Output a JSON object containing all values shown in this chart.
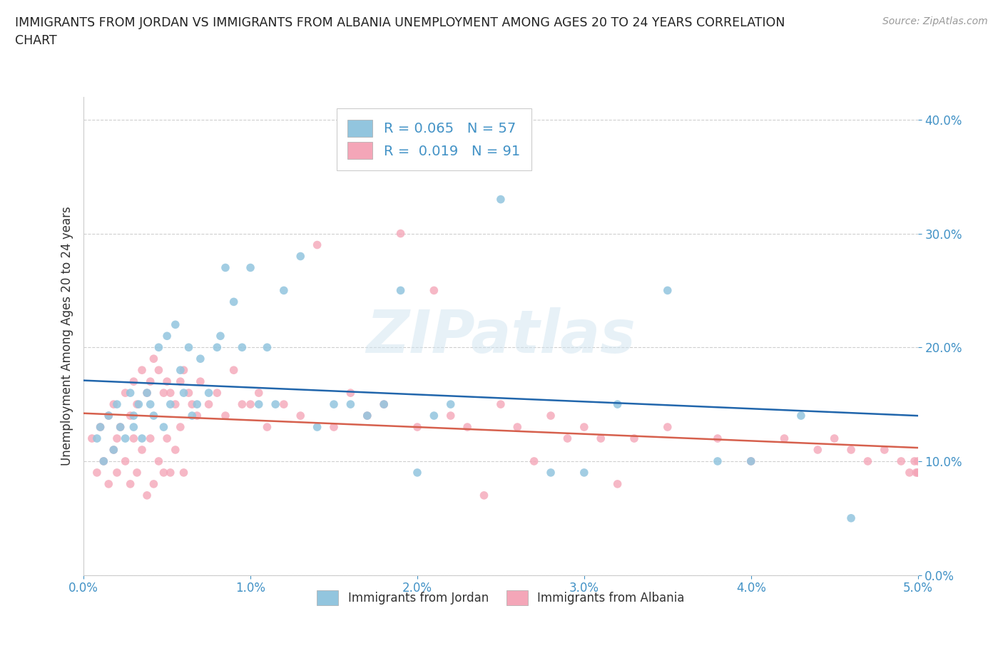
{
  "title": "IMMIGRANTS FROM JORDAN VS IMMIGRANTS FROM ALBANIA UNEMPLOYMENT AMONG AGES 20 TO 24 YEARS CORRELATION\nCHART",
  "source": "Source: ZipAtlas.com",
  "xlabel": "",
  "ylabel": "Unemployment Among Ages 20 to 24 years",
  "legend_label_jordan": "Immigrants from Jordan",
  "legend_label_albania": "Immigrants from Albania",
  "R_jordan": 0.065,
  "N_jordan": 57,
  "R_albania": 0.019,
  "N_albania": 91,
  "color_jordan": "#92c5de",
  "color_albania": "#f4a6b8",
  "trendline_jordan": "#2166ac",
  "trendline_albania": "#d6604d",
  "xlim": [
    0.0,
    0.05
  ],
  "ylim": [
    0.0,
    0.42
  ],
  "xticks": [
    0.0,
    0.01,
    0.02,
    0.03,
    0.04,
    0.05
  ],
  "yticks": [
    0.0,
    0.1,
    0.2,
    0.3,
    0.4
  ],
  "watermark": "ZIPatlas",
  "jordan_x": [
    0.0008,
    0.001,
    0.0012,
    0.0015,
    0.0018,
    0.002,
    0.0022,
    0.0025,
    0.0028,
    0.003,
    0.003,
    0.0033,
    0.0035,
    0.0038,
    0.004,
    0.0042,
    0.0045,
    0.0048,
    0.005,
    0.0052,
    0.0055,
    0.0058,
    0.006,
    0.0063,
    0.0065,
    0.0068,
    0.007,
    0.0075,
    0.008,
    0.0082,
    0.0085,
    0.009,
    0.0095,
    0.01,
    0.0105,
    0.011,
    0.0115,
    0.012,
    0.013,
    0.014,
    0.015,
    0.016,
    0.017,
    0.018,
    0.019,
    0.02,
    0.021,
    0.022,
    0.025,
    0.028,
    0.03,
    0.032,
    0.035,
    0.038,
    0.04,
    0.043,
    0.046
  ],
  "jordan_y": [
    0.12,
    0.13,
    0.1,
    0.14,
    0.11,
    0.15,
    0.13,
    0.12,
    0.16,
    0.14,
    0.13,
    0.15,
    0.12,
    0.16,
    0.15,
    0.14,
    0.2,
    0.13,
    0.21,
    0.15,
    0.22,
    0.18,
    0.16,
    0.2,
    0.14,
    0.15,
    0.19,
    0.16,
    0.2,
    0.21,
    0.27,
    0.24,
    0.2,
    0.27,
    0.15,
    0.2,
    0.15,
    0.25,
    0.28,
    0.13,
    0.15,
    0.15,
    0.14,
    0.15,
    0.25,
    0.09,
    0.14,
    0.15,
    0.33,
    0.09,
    0.09,
    0.15,
    0.25,
    0.1,
    0.1,
    0.14,
    0.05
  ],
  "albania_x": [
    0.0005,
    0.0008,
    0.001,
    0.0012,
    0.0015,
    0.0015,
    0.0018,
    0.0018,
    0.002,
    0.002,
    0.0022,
    0.0025,
    0.0025,
    0.0028,
    0.0028,
    0.003,
    0.003,
    0.0032,
    0.0032,
    0.0035,
    0.0035,
    0.0038,
    0.0038,
    0.004,
    0.004,
    0.0042,
    0.0042,
    0.0045,
    0.0045,
    0.0048,
    0.0048,
    0.005,
    0.005,
    0.0052,
    0.0052,
    0.0055,
    0.0055,
    0.0058,
    0.0058,
    0.006,
    0.006,
    0.0063,
    0.0065,
    0.0068,
    0.007,
    0.0075,
    0.008,
    0.0085,
    0.009,
    0.0095,
    0.01,
    0.0105,
    0.011,
    0.012,
    0.013,
    0.014,
    0.015,
    0.016,
    0.017,
    0.018,
    0.019,
    0.02,
    0.021,
    0.022,
    0.023,
    0.024,
    0.025,
    0.026,
    0.027,
    0.028,
    0.029,
    0.03,
    0.031,
    0.032,
    0.033,
    0.035,
    0.038,
    0.04,
    0.042,
    0.044,
    0.045,
    0.046,
    0.047,
    0.048,
    0.049,
    0.0495,
    0.0498,
    0.0499,
    0.05,
    0.05,
    0.05
  ],
  "albania_y": [
    0.12,
    0.09,
    0.13,
    0.1,
    0.14,
    0.08,
    0.11,
    0.15,
    0.12,
    0.09,
    0.13,
    0.16,
    0.1,
    0.14,
    0.08,
    0.17,
    0.12,
    0.15,
    0.09,
    0.18,
    0.11,
    0.16,
    0.07,
    0.17,
    0.12,
    0.19,
    0.08,
    0.18,
    0.1,
    0.16,
    0.09,
    0.17,
    0.12,
    0.16,
    0.09,
    0.15,
    0.11,
    0.17,
    0.13,
    0.18,
    0.09,
    0.16,
    0.15,
    0.14,
    0.17,
    0.15,
    0.16,
    0.14,
    0.18,
    0.15,
    0.15,
    0.16,
    0.13,
    0.15,
    0.14,
    0.29,
    0.13,
    0.16,
    0.14,
    0.15,
    0.3,
    0.13,
    0.25,
    0.14,
    0.13,
    0.07,
    0.15,
    0.13,
    0.1,
    0.14,
    0.12,
    0.13,
    0.12,
    0.08,
    0.12,
    0.13,
    0.12,
    0.1,
    0.12,
    0.11,
    0.12,
    0.11,
    0.1,
    0.11,
    0.1,
    0.09,
    0.1,
    0.09,
    0.1,
    0.09,
    0.09
  ]
}
